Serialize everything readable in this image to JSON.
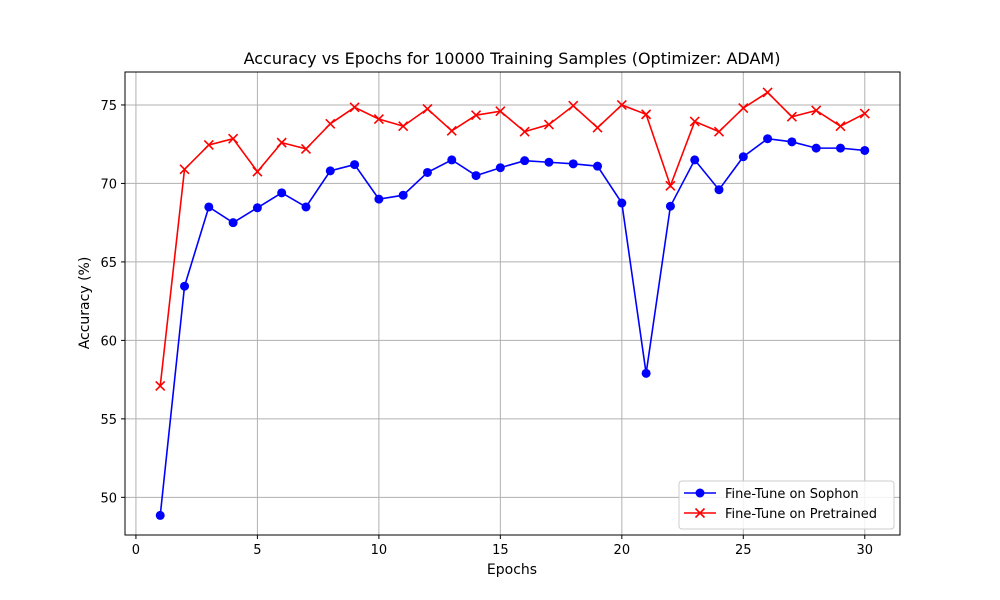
{
  "chart_data": {
    "type": "line",
    "title": "Accuracy vs Epochs for 10000 Training Samples (Optimizer: ADAM)",
    "xlabel": "Epochs",
    "ylabel": "Accuracy (%)",
    "xlim": [
      -0.45,
      31.45
    ],
    "ylim": [
      47.6,
      77.1
    ],
    "xticks": [
      0,
      5,
      10,
      15,
      20,
      25,
      30
    ],
    "yticks": [
      50,
      55,
      60,
      65,
      70,
      75
    ],
    "grid": true,
    "legend_position": "lower-right",
    "x": [
      1,
      2,
      3,
      4,
      5,
      6,
      7,
      8,
      9,
      10,
      11,
      12,
      13,
      14,
      15,
      16,
      17,
      18,
      19,
      20,
      21,
      22,
      23,
      24,
      25,
      26,
      27,
      28,
      29,
      30
    ],
    "series": [
      {
        "name": "Fine-Tune on Sophon",
        "color": "#0000ff",
        "marker": "circle",
        "values": [
          48.85,
          63.45,
          68.5,
          67.5,
          68.45,
          69.4,
          68.5,
          70.8,
          71.2,
          69.0,
          69.25,
          70.7,
          71.5,
          70.5,
          71.0,
          71.45,
          71.35,
          71.25,
          71.1,
          68.75,
          57.9,
          68.55,
          71.5,
          69.6,
          71.7,
          72.85,
          72.65,
          72.25,
          72.25,
          72.1
        ]
      },
      {
        "name": "Fine-Tune on Pretrained",
        "color": "#ff0000",
        "marker": "x",
        "values": [
          57.1,
          70.9,
          72.45,
          72.85,
          70.75,
          72.6,
          72.2,
          73.8,
          74.85,
          74.1,
          73.65,
          74.75,
          73.35,
          74.35,
          74.6,
          73.3,
          73.75,
          74.95,
          73.55,
          75.0,
          74.4,
          69.85,
          73.95,
          73.3,
          74.8,
          75.8,
          74.25,
          74.65,
          73.65,
          74.45
        ]
      }
    ]
  }
}
